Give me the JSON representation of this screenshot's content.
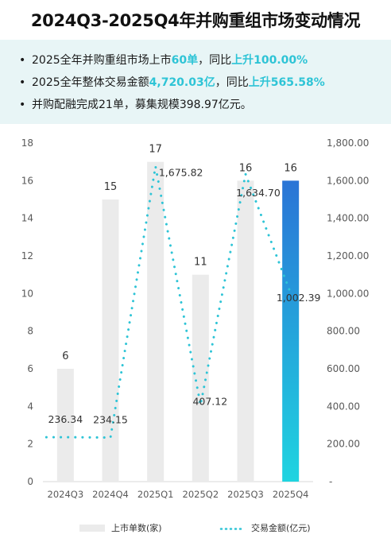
{
  "title": "2024Q3-2025Q4年并购重组市场变动情况",
  "summary": {
    "line1": {
      "pre": "2025全年并购重组市场上市",
      "v1": "60单",
      "mid": "，同比",
      "v2": "上升100.00%"
    },
    "line2": {
      "pre": "2025全年整体交易金额",
      "v1": "4,720.03亿",
      "mid": "，同比",
      "v2": "上升565.58%"
    },
    "line3": {
      "text": "并购配融完成21单，募集规模398.97亿元。"
    }
  },
  "colors": {
    "accent": "#2ec4d6",
    "bar": "#ebebeb",
    "highlight_top": "#2a74d6",
    "highlight_bottom": "#1fd4e0"
  },
  "chart_data": {
    "type": "bar",
    "categories": [
      "2024Q3",
      "2024Q4",
      "2025Q1",
      "2025Q2",
      "2025Q3",
      "2025Q4"
    ],
    "series": [
      {
        "name": "上市单数(家)",
        "type": "bar",
        "axis": "left",
        "values": [
          6,
          15,
          17,
          11,
          16,
          16
        ],
        "labels": [
          "6",
          "15",
          "17",
          "11",
          "16",
          "16"
        ]
      },
      {
        "name": "交易金额(亿元)",
        "type": "line",
        "axis": "right",
        "values": [
          236.34,
          234.15,
          1675.82,
          407.12,
          1634.7,
          1002.39
        ],
        "labels": [
          "236.34",
          "234.15",
          "1,675.82",
          "407.12",
          "1,634.70",
          "1,002.39"
        ]
      }
    ],
    "y_left": {
      "min": 0,
      "max": 18,
      "ticks": [
        "0",
        "2",
        "4",
        "6",
        "8",
        "10",
        "12",
        "14",
        "16",
        "18"
      ]
    },
    "y_right": {
      "min": 0,
      "max": 1800,
      "ticks": [
        "-",
        "200.00",
        "400.00",
        "600.00",
        "800.00",
        "1,000.00",
        "1,200.00",
        "1,400.00",
        "1,600.00",
        "1,800.00"
      ]
    },
    "highlight_index": 5,
    "legend": "bottom",
    "grid": false
  }
}
